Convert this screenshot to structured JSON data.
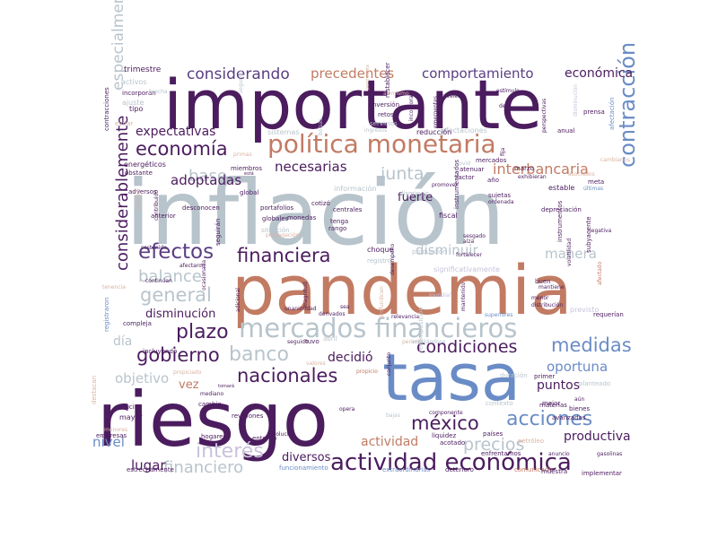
{
  "palette": {
    "dark_purple": "#4b1c5e",
    "mid_purple": "#5a3e82",
    "blue_purple": "#5d62a8",
    "steel_blue": "#6a8cc6",
    "gray_blue": "#b8c4cc",
    "terracotta": "#c27b63",
    "light_tan": "#d8b3a3",
    "pale_lilac": "#c9c2dc"
  },
  "words": [
    {
      "text": "inflación",
      "color": "gray_blue",
      "weight": "large"
    },
    {
      "text": "importante",
      "color": "dark_purple",
      "weight": "large"
    },
    {
      "text": "pandemia",
      "color": "terracotta",
      "weight": "large"
    },
    {
      "text": "riesgo",
      "color": "dark_purple",
      "weight": "large"
    },
    {
      "text": "tasa",
      "color": "steel_blue",
      "weight": "large"
    },
    {
      "text": "política monetaria",
      "color": "terracotta",
      "weight": "medium"
    },
    {
      "text": "mercados financieros",
      "color": "gray_blue",
      "weight": "medium"
    },
    {
      "text": "actividad económica",
      "color": "dark_purple",
      "weight": "medium"
    },
    {
      "text": "financiera",
      "color": "dark_purple",
      "weight": "medium"
    },
    {
      "text": "efectos",
      "color": "mid_purple",
      "weight": "medium"
    },
    {
      "text": "nacionales",
      "color": "dark_purple",
      "weight": "medium"
    },
    {
      "text": "plazo",
      "color": "dark_purple",
      "weight": "medium"
    },
    {
      "text": "general",
      "color": "gray_blue",
      "weight": "medium"
    },
    {
      "text": "economía",
      "color": "dark_purple",
      "weight": "medium"
    },
    {
      "text": "gobierno",
      "color": "dark_purple",
      "weight": "medium"
    },
    {
      "text": "banco",
      "color": "gray_blue",
      "weight": "medium"
    },
    {
      "text": "méxico",
      "color": "dark_purple",
      "weight": "medium"
    },
    {
      "text": "acciones",
      "color": "steel_blue",
      "weight": "medium"
    },
    {
      "text": "interés",
      "color": "pale_lilac",
      "weight": "medium"
    },
    {
      "text": "considerablemente",
      "color": "dark_purple",
      "weight": "medium"
    },
    {
      "text": "contracción",
      "color": "steel_blue",
      "weight": "medium"
    },
    {
      "text": "condiciones",
      "color": "dark_purple",
      "weight": "medium"
    },
    {
      "text": "medidas",
      "color": "steel_blue",
      "weight": "medium"
    },
    {
      "text": "considerando",
      "color": "mid_purple",
      "weight": "small"
    },
    {
      "text": "precedentes",
      "color": "terracotta",
      "weight": "small"
    },
    {
      "text": "comportamiento",
      "color": "mid_purple",
      "weight": "small"
    },
    {
      "text": "económica",
      "color": "dark_purple",
      "weight": "small"
    },
    {
      "text": "expectativas",
      "color": "dark_purple",
      "weight": "small"
    },
    {
      "text": "junta",
      "color": "gray_blue",
      "weight": "small"
    },
    {
      "text": "interbancaria",
      "color": "terracotta",
      "weight": "small"
    },
    {
      "text": "base",
      "color": "gray_blue",
      "weight": "small"
    },
    {
      "text": "necesarias",
      "color": "dark_purple",
      "weight": "small"
    },
    {
      "text": "adoptadas",
      "color": "dark_purple",
      "weight": "small"
    },
    {
      "text": "balance",
      "color": "gray_blue",
      "weight": "small"
    },
    {
      "text": "disminuir",
      "color": "gray_blue",
      "weight": "small"
    },
    {
      "text": "manera",
      "color": "gray_blue",
      "weight": "small"
    },
    {
      "text": "financiero",
      "color": "gray_blue",
      "weight": "small"
    },
    {
      "text": "precios",
      "color": "gray_blue",
      "weight": "small"
    },
    {
      "text": "oportuna",
      "color": "steel_blue",
      "weight": "small"
    },
    {
      "text": "decidió",
      "color": "dark_purple",
      "weight": "small"
    },
    {
      "text": "puntos",
      "color": "dark_purple",
      "weight": "small"
    },
    {
      "text": "nivel",
      "color": "steel_blue",
      "weight": "small"
    },
    {
      "text": "lugar",
      "color": "dark_purple",
      "weight": "small"
    },
    {
      "text": "actividad",
      "color": "terracotta",
      "weight": "small"
    },
    {
      "text": "productiva",
      "color": "dark_purple",
      "weight": "small"
    },
    {
      "text": "diversos",
      "color": "dark_purple",
      "weight": "small"
    },
    {
      "text": "disminución",
      "color": "dark_purple",
      "weight": "small"
    },
    {
      "text": "día",
      "color": "gray_blue",
      "weight": "small"
    },
    {
      "text": "especialmente",
      "color": "gray_blue",
      "weight": "small"
    },
    {
      "text": "fuerte",
      "color": "dark_purple",
      "weight": "small"
    },
    {
      "text": "objetivo",
      "color": "gray_blue",
      "weight": "small"
    },
    {
      "text": "vez",
      "color": "terracotta",
      "weight": "small"
    },
    {
      "text": "trimestre",
      "color": "dark_purple",
      "weight": "tiny"
    },
    {
      "text": "activos",
      "color": "gray_blue",
      "weight": "tiny"
    },
    {
      "text": "incorporan",
      "color": "dark_purple",
      "weight": "tiny"
    },
    {
      "text": "ajuste",
      "color": "gray_blue",
      "weight": "tiny"
    },
    {
      "text": "tipo",
      "color": "dark_purple",
      "weight": "tiny"
    },
    {
      "text": "evitar",
      "color": "light_tan",
      "weight": "tiny"
    },
    {
      "text": "contracciones",
      "color": "dark_purple",
      "weight": "tiny"
    },
    {
      "text": "energéticos",
      "color": "dark_purple",
      "weight": "tiny"
    },
    {
      "text": "obstante",
      "color": "dark_purple",
      "weight": "tiny"
    },
    {
      "text": "adversos",
      "color": "dark_purple",
      "weight": "tiny"
    },
    {
      "text": "anterior",
      "color": "dark_purple",
      "weight": "tiny"
    },
    {
      "text": "contribuido",
      "color": "dark_purple",
      "weight": "tiny"
    },
    {
      "text": "proveer",
      "color": "light_tan",
      "weight": "tiny"
    },
    {
      "text": "desconocen",
      "color": "dark_purple",
      "weight": "tiny"
    },
    {
      "text": "global",
      "color": "dark_purple",
      "weight": "tiny"
    },
    {
      "text": "portafolios",
      "color": "dark_purple",
      "weight": "tiny"
    },
    {
      "text": "globales",
      "color": "dark_purple",
      "weight": "tiny"
    },
    {
      "text": "situación",
      "color": "gray_blue",
      "weight": "tiny"
    },
    {
      "text": "seguirán",
      "color": "dark_purple",
      "weight": "tiny"
    },
    {
      "text": "sistemas",
      "color": "gray_blue",
      "weight": "tiny"
    },
    {
      "text": "información",
      "color": "gray_blue",
      "weight": "tiny"
    },
    {
      "text": "monedas",
      "color": "dark_purple",
      "weight": "tiny"
    },
    {
      "text": "cotizó",
      "color": "dark_purple",
      "weight": "tiny"
    },
    {
      "text": "centrales",
      "color": "dark_purple",
      "weight": "tiny"
    },
    {
      "text": "tenga",
      "color": "dark_purple",
      "weight": "tiny"
    },
    {
      "text": "rango",
      "color": "dark_purple",
      "weight": "tiny"
    },
    {
      "text": "choque",
      "color": "dark_purple",
      "weight": "tiny"
    },
    {
      "text": "registro",
      "color": "gray_blue",
      "weight": "tiny"
    },
    {
      "text": "producción",
      "color": "gray_blue",
      "weight": "tiny"
    },
    {
      "text": "fiscal",
      "color": "dark_purple",
      "weight": "tiny"
    },
    {
      "text": "sujetas",
      "color": "dark_purple",
      "weight": "tiny"
    },
    {
      "text": "ordenada",
      "color": "dark_purple",
      "weight": "tiny"
    },
    {
      "text": "estable",
      "color": "dark_purple",
      "weight": "tiny"
    },
    {
      "text": "depreciación",
      "color": "dark_purple",
      "weight": "tiny"
    },
    {
      "text": "instrumentados",
      "color": "dark_purple",
      "weight": "tiny"
    },
    {
      "text": "instrumentos",
      "color": "dark_purple",
      "weight": "tiny"
    },
    {
      "text": "volatilidad",
      "color": "dark_purple",
      "weight": "tiny"
    },
    {
      "text": "subyacente",
      "color": "dark_purple",
      "weight": "tiny"
    },
    {
      "text": "marzo",
      "color": "dark_purple",
      "weight": "tiny"
    },
    {
      "text": "exhibieran",
      "color": "dark_purple",
      "weight": "tiny"
    },
    {
      "text": "asociados",
      "color": "light_tan",
      "weight": "tiny"
    },
    {
      "text": "meta",
      "color": "dark_purple",
      "weight": "tiny"
    },
    {
      "text": "últimas",
      "color": "steel_blue",
      "weight": "tiny"
    },
    {
      "text": "cambiarios",
      "color": "light_tan",
      "weight": "tiny"
    },
    {
      "text": "afectaciones",
      "color": "gray_blue",
      "weight": "tiny"
    },
    {
      "text": "reducción",
      "color": "dark_purple",
      "weight": "tiny"
    },
    {
      "text": "anual",
      "color": "dark_purple",
      "weight": "tiny"
    },
    {
      "text": "fija",
      "color": "dark_purple",
      "weight": "tiny"
    },
    {
      "text": "covid",
      "color": "gray_blue",
      "weight": "tiny"
    },
    {
      "text": "atenuar",
      "color": "dark_purple",
      "weight": "tiny"
    },
    {
      "text": "factor",
      "color": "dark_purple",
      "weight": "tiny"
    },
    {
      "text": "promover",
      "color": "dark_purple",
      "weight": "tiny"
    },
    {
      "text": "año",
      "color": "dark_purple",
      "weight": "tiny"
    },
    {
      "text": "mercados",
      "color": "dark_purple",
      "weight": "tiny"
    },
    {
      "text": "retos",
      "color": "dark_purple",
      "weight": "tiny"
    },
    {
      "text": "inversión",
      "color": "dark_purple",
      "weight": "tiny"
    },
    {
      "text": "restablecer",
      "color": "dark_purple",
      "weight": "tiny"
    },
    {
      "text": "incorpora",
      "color": "dark_purple",
      "weight": "tiny"
    },
    {
      "text": "emergentes",
      "color": "dark_purple",
      "weight": "tiny"
    },
    {
      "text": "perspectivas",
      "color": "dark_purple",
      "weight": "tiny"
    },
    {
      "text": "prensa",
      "color": "dark_purple",
      "weight": "tiny"
    },
    {
      "text": "afectación",
      "color": "steel_blue",
      "weight": "tiny"
    },
    {
      "text": "den",
      "color": "dark_purple",
      "weight": "tiny"
    },
    {
      "text": "bolsas",
      "color": "gray_blue",
      "weight": "tiny"
    },
    {
      "text": "niveles",
      "color": "dark_purple",
      "weight": "tiny"
    },
    {
      "text": "asimismo",
      "color": "light_tan",
      "weight": "tiny"
    },
    {
      "text": "primas",
      "color": "light_tan",
      "weight": "tiny"
    },
    {
      "text": "servicios",
      "color": "gray_blue",
      "weight": "tiny"
    },
    {
      "text": "ingresos",
      "color": "gray_blue",
      "weight": "tiny"
    },
    {
      "text": "persistente",
      "color": "light_tan",
      "weight": "tiny"
    },
    {
      "text": "disminuir",
      "color": "gray_blue",
      "weight": "tiny"
    },
    {
      "text": "significativamente",
      "color": "pale_lilac",
      "weight": "tiny"
    },
    {
      "text": "desempeño",
      "color": "dark_purple",
      "weight": "tiny"
    },
    {
      "text": "magnitud",
      "color": "dark_purple",
      "weight": "tiny"
    },
    {
      "text": "profundicen",
      "color": "light_tan",
      "weight": "tiny"
    },
    {
      "text": "mundial",
      "color": "pale_lilac",
      "weight": "tiny"
    },
    {
      "text": "buen",
      "color": "dark_purple",
      "weight": "tiny"
    },
    {
      "text": "mantiene",
      "color": "dark_purple",
      "weight": "tiny"
    },
    {
      "text": "menor",
      "color": "dark_purple",
      "weight": "tiny"
    },
    {
      "text": "previsto",
      "color": "pale_lilac",
      "weight": "tiny"
    },
    {
      "text": "sea",
      "color": "dark_purple",
      "weight": "tiny"
    },
    {
      "text": "relevancia",
      "color": "dark_purple",
      "weight": "tiny"
    },
    {
      "text": "superiores",
      "color": "steel_blue",
      "weight": "tiny"
    },
    {
      "text": "recomposición",
      "color": "gray_blue",
      "weight": "tiny"
    },
    {
      "text": "seguido",
      "color": "dark_purple",
      "weight": "tiny"
    },
    {
      "text": "tuvo",
      "color": "dark_purple",
      "weight": "tiny"
    },
    {
      "text": "periodo",
      "color": "light_tan",
      "weight": "tiny"
    },
    {
      "text": "ampliándose",
      "color": "gray_blue",
      "weight": "tiny"
    },
    {
      "text": "valores",
      "color": "light_tan",
      "weight": "tiny"
    },
    {
      "text": "propicio",
      "color": "terracotta",
      "weight": "tiny"
    },
    {
      "text": "propiciado",
      "color": "light_tan",
      "weight": "tiny"
    },
    {
      "text": "tomará",
      "color": "dark_purple",
      "weight": "tiny"
    },
    {
      "text": "duración",
      "color": "gray_blue",
      "weight": "tiny"
    },
    {
      "text": "primer",
      "color": "dark_purple",
      "weight": "tiny"
    },
    {
      "text": "materias",
      "color": "dark_purple",
      "weight": "tiny"
    },
    {
      "text": "avanzadas",
      "color": "dark_purple",
      "weight": "tiny"
    },
    {
      "text": "mejor",
      "color": "dark_purple",
      "weight": "tiny"
    },
    {
      "text": "aún",
      "color": "dark_purple",
      "weight": "tiny"
    },
    {
      "text": "bienes",
      "color": "dark_purple",
      "weight": "tiny"
    },
    {
      "text": "mayor",
      "color": "dark_purple",
      "weight": "tiny"
    },
    {
      "text": "reducir",
      "color": "dark_purple",
      "weight": "tiny"
    },
    {
      "text": "empresas",
      "color": "dark_purple",
      "weight": "tiny"
    },
    {
      "text": "menores",
      "color": "light_tan",
      "weight": "tiny"
    },
    {
      "text": "cambio",
      "color": "dark_purple",
      "weight": "tiny"
    },
    {
      "text": "mediano",
      "color": "dark_purple",
      "weight": "tiny"
    },
    {
      "text": "revisiones",
      "color": "dark_purple",
      "weight": "tiny"
    },
    {
      "text": "hogares",
      "color": "dark_purple",
      "weight": "tiny"
    },
    {
      "text": "entorno",
      "color": "dark_purple",
      "weight": "tiny"
    },
    {
      "text": "opera",
      "color": "dark_purple",
      "weight": "tiny"
    },
    {
      "text": "bajas",
      "color": "gray_blue",
      "weight": "tiny"
    },
    {
      "text": "componente",
      "color": "dark_purple",
      "weight": "tiny"
    },
    {
      "text": "contexto",
      "color": "gray_blue",
      "weight": "tiny"
    },
    {
      "text": "países",
      "color": "dark_purple",
      "weight": "tiny"
    },
    {
      "text": "liquidez",
      "color": "dark_purple",
      "weight": "tiny"
    },
    {
      "text": "acotado",
      "color": "dark_purple",
      "weight": "tiny"
    },
    {
      "text": "enfrentamos",
      "color": "dark_purple",
      "weight": "tiny"
    },
    {
      "text": "petróleo",
      "color": "light_tan",
      "weight": "tiny"
    },
    {
      "text": "anuncio",
      "color": "dark_purple",
      "weight": "tiny"
    },
    {
      "text": "gasolinas",
      "color": "dark_purple",
      "weight": "tiny"
    },
    {
      "text": "evolución",
      "color": "dark_purple",
      "weight": "tiny"
    },
    {
      "text": "funcionamiento",
      "color": "steel_blue",
      "weight": "tiny"
    },
    {
      "text": "extraordinarias",
      "color": "steel_blue",
      "weight": "tiny"
    },
    {
      "text": "deterioro",
      "color": "dark_purple",
      "weight": "tiny"
    },
    {
      "text": "comunicado",
      "color": "terracotta",
      "weight": "tiny"
    },
    {
      "text": "muestra",
      "color": "dark_purple",
      "weight": "tiny"
    },
    {
      "text": "implementar",
      "color": "dark_purple",
      "weight": "tiny"
    },
    {
      "text": "compleja",
      "color": "dark_purple",
      "weight": "tiny"
    },
    {
      "text": "registraron",
      "color": "steel_blue",
      "weight": "tiny"
    },
    {
      "text": "destacan",
      "color": "light_tan",
      "weight": "tiny"
    },
    {
      "text": "estrechamente",
      "color": "dark_purple",
      "weight": "tiny"
    },
    {
      "text": "incluyendo",
      "color": "dark_purple",
      "weight": "tiny"
    },
    {
      "text": "ocasionada",
      "color": "dark_purple",
      "weight": "tiny"
    },
    {
      "text": "adicional",
      "color": "dark_purple",
      "weight": "tiny"
    },
    {
      "text": "sostenida",
      "color": "dark_purple",
      "weight": "tiny"
    },
    {
      "text": "afectaron",
      "color": "dark_purple",
      "weight": "tiny"
    },
    {
      "text": "tenencia",
      "color": "light_tan",
      "weight": "tiny"
    },
    {
      "text": "continúan",
      "color": "dark_purple",
      "weight": "tiny"
    },
    {
      "text": "segundo",
      "color": "gray_blue",
      "weight": "tiny"
    },
    {
      "text": "miembros",
      "color": "dark_purple",
      "weight": "tiny"
    },
    {
      "text": "brecha",
      "color": "gray_blue",
      "weight": "tiny"
    },
    {
      "text": "alza",
      "color": "dark_purple",
      "weight": "tiny"
    },
    {
      "text": "sesgado",
      "color": "dark_purple",
      "weight": "tiny"
    },
    {
      "text": "fortalecer",
      "color": "dark_purple",
      "weight": "tiny"
    },
    {
      "text": "derivados",
      "color": "dark_purple",
      "weight": "tiny"
    },
    {
      "text": "unanimidad",
      "color": "dark_purple",
      "weight": "tiny"
    },
    {
      "text": "distribución",
      "color": "dark_purple",
      "weight": "tiny"
    },
    {
      "text": "requerían",
      "color": "dark_purple",
      "weight": "tiny"
    },
    {
      "text": "afectado",
      "color": "terracotta",
      "weight": "tiny"
    },
    {
      "text": "conjunto",
      "color": "dark_purple",
      "weight": "tiny"
    },
    {
      "text": "mantenido",
      "color": "dark_purple",
      "weight": "tiny"
    },
    {
      "text": "planteado",
      "color": "gray_blue",
      "weight": "tiny"
    },
    {
      "text": "estímulo",
      "color": "dark_purple",
      "weight": "tiny"
    },
    {
      "text": "disminución",
      "color": "pale_lilac",
      "weight": "tiny"
    },
    {
      "text": "abril",
      "color": "gray_blue",
      "weight": "tiny"
    },
    {
      "text": "está",
      "color": "dark_purple",
      "weight": "tiny"
    },
    {
      "text": "negativa",
      "color": "dark_purple",
      "weight": "tiny"
    },
    {
      "text": "propagación",
      "color": "light_tan",
      "weight": "tiny"
    }
  ]
}
